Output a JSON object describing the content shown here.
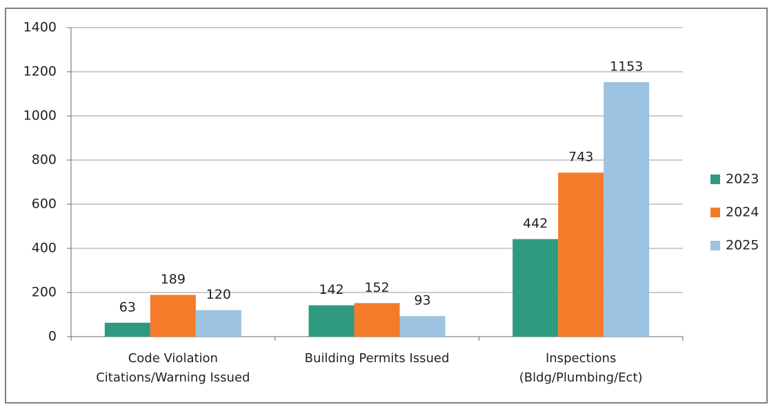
{
  "chart_data": {
    "type": "bar",
    "categories": [
      "Code Violation Citations/Warning Issued",
      "Building Permits Issued",
      "Inspections (Bldg/Plumbing/Ect)"
    ],
    "series": [
      {
        "name": "2023",
        "color": "#2e9a80",
        "values": [
          63,
          142,
          442
        ]
      },
      {
        "name": "2024",
        "color": "#f47b2a",
        "values": [
          189,
          152,
          743
        ]
      },
      {
        "name": "2025",
        "color": "#9dc3e0",
        "values": [
          120,
          93,
          1153
        ]
      }
    ],
    "ylim": [
      0,
      1400
    ],
    "yticks": [
      0,
      200,
      400,
      600,
      800,
      1000,
      1200,
      1400
    ],
    "grid": true,
    "legend": "right"
  }
}
